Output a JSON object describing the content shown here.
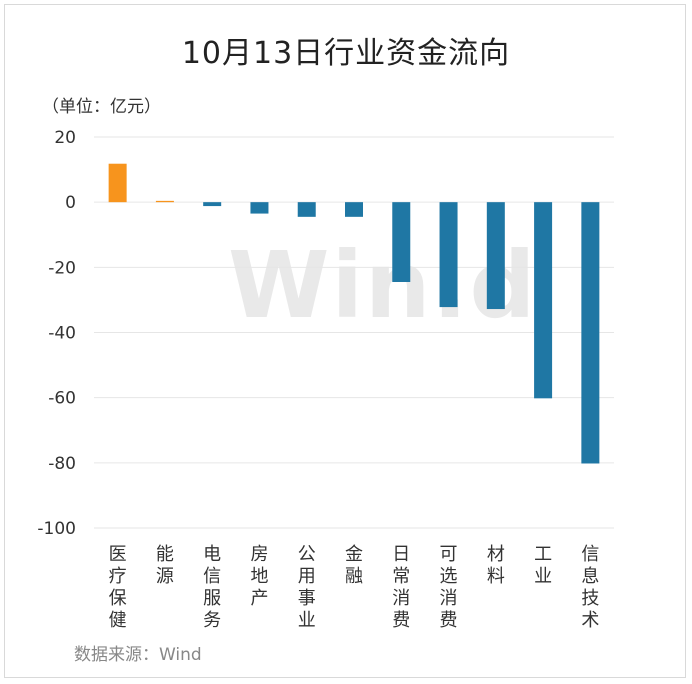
{
  "title": "10月13日行业资金流向",
  "unit": "（单位：亿元）",
  "source": "数据来源：Wind",
  "watermark": "Win.d",
  "colors": {
    "positive": "#f7941d",
    "negative": "#1f77a4",
    "grid": "#e6e6e6"
  },
  "chart_data": {
    "type": "bar",
    "title": "10月13日行业资金流向",
    "ylabel": "（单位：亿元）",
    "xlabel": "",
    "ylim": [
      -100,
      20
    ],
    "yticks": [
      20,
      0,
      -20,
      -40,
      -60,
      -80,
      -100
    ],
    "grid": true,
    "categories": [
      "医疗保健",
      "能源",
      "电信服务",
      "房地产",
      "公用事业",
      "金融",
      "日常消费",
      "可选消费",
      "材料",
      "工业",
      "信息技术"
    ],
    "values": [
      11.8,
      0.4,
      -1.2,
      -3.5,
      -4.5,
      -4.5,
      -24.5,
      -32.2,
      -32.8,
      -60.2,
      -80.2
    ]
  }
}
